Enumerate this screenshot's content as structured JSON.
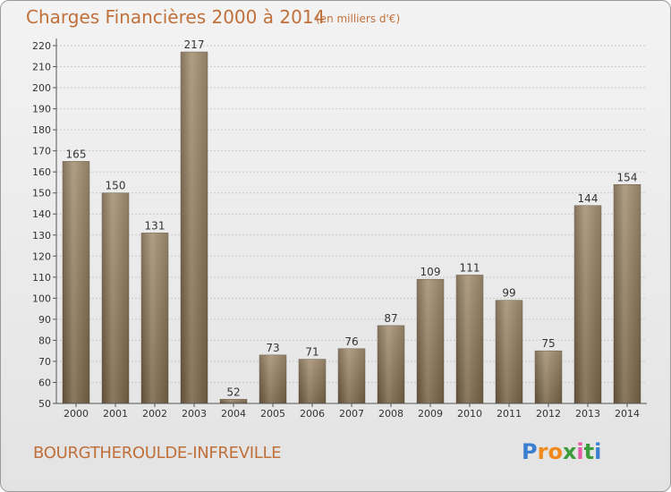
{
  "title": "Charges Financières 2000 à 2014",
  "subtitle": "(en milliers d'€)",
  "city": "BOURGTHEROULDE-INFREVILLE",
  "logo": {
    "letters": [
      "P",
      "r",
      "o",
      "x",
      "i",
      "t",
      "i"
    ],
    "colors": [
      "#3a7fd0",
      "#f08a1c",
      "#f08a1c",
      "#3a9c3a",
      "#e85aa5",
      "#3a9c3a",
      "#3a7fd0"
    ]
  },
  "chart_data": {
    "type": "bar",
    "title": "Charges Financières 2000 à 2014",
    "subtitle": "(en milliers d'€)",
    "categories": [
      "2000",
      "2001",
      "2002",
      "2003",
      "2004",
      "2005",
      "2006",
      "2007",
      "2008",
      "2009",
      "2010",
      "2011",
      "2012",
      "2013",
      "2014"
    ],
    "values": [
      165,
      150,
      131,
      217,
      52,
      73,
      71,
      76,
      87,
      109,
      111,
      99,
      75,
      144,
      154
    ],
    "ylim": [
      50,
      220
    ],
    "yticks": [
      50,
      60,
      70,
      80,
      90,
      100,
      110,
      120,
      130,
      140,
      150,
      160,
      170,
      180,
      190,
      200,
      210,
      220
    ],
    "grid": true,
    "bar_color": "#8a7658",
    "legend": "none"
  }
}
